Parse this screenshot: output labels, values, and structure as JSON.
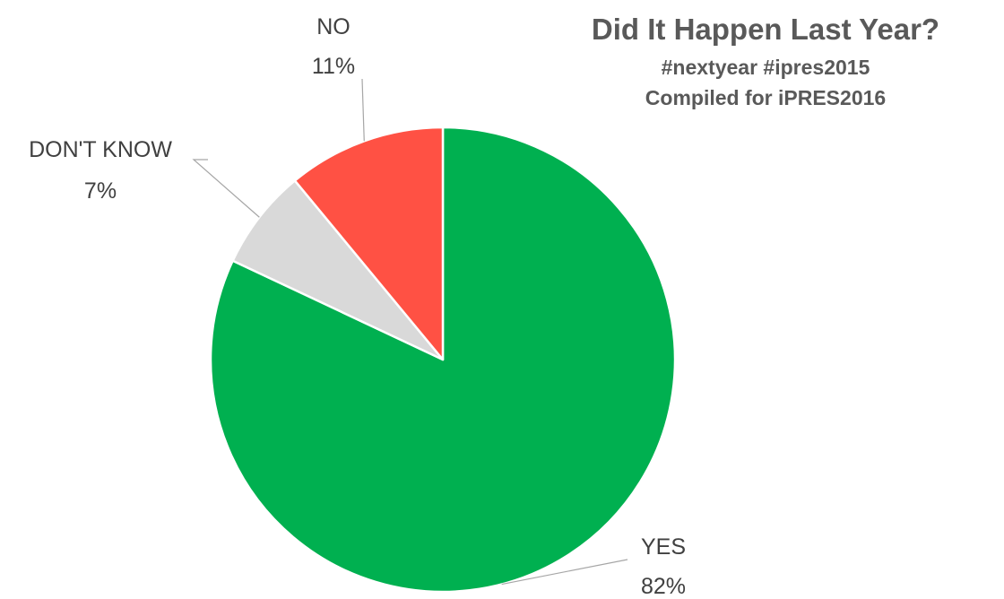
{
  "chart_data": {
    "type": "pie",
    "title": "Did It Happen Last Year?",
    "subtitle_lines": [
      "#nextyear #ipres2015",
      "Compiled for iPRES2016"
    ],
    "slices": [
      {
        "label": "YES",
        "value": 82,
        "value_label": "82%",
        "color": "#00b050"
      },
      {
        "label": "DON'T KNOW",
        "value": 7,
        "value_label": "7%",
        "color": "#d9d9d9"
      },
      {
        "label": "NO",
        "value": 11,
        "value_label": "11%",
        "color": "#ff5144"
      }
    ],
    "start": "12 o'clock",
    "direction": "clockwise",
    "legend": "none"
  }
}
